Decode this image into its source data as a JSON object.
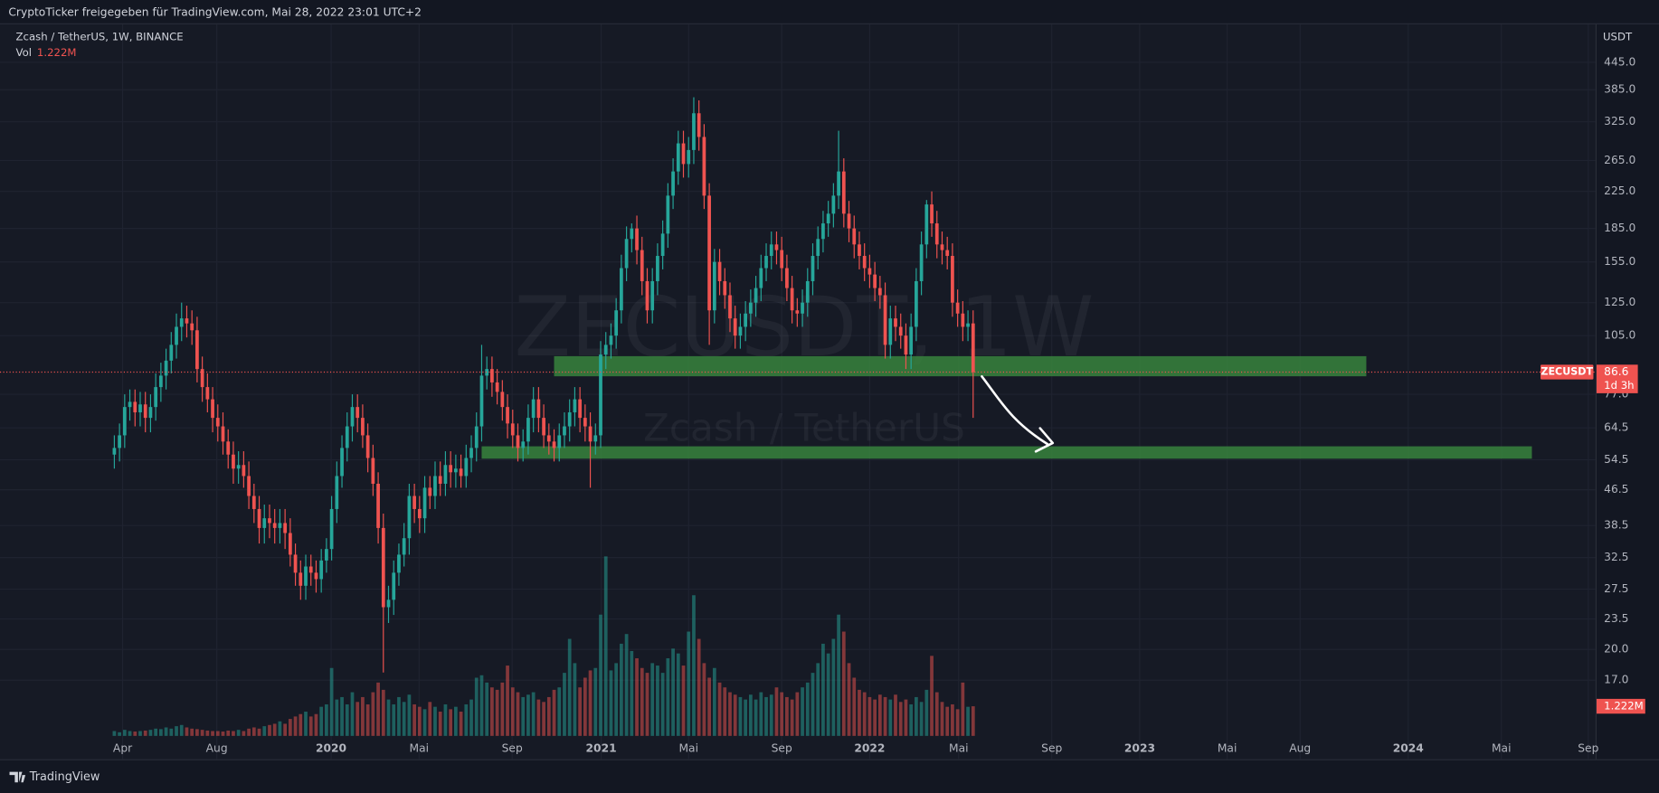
{
  "header": {
    "title": "CryptoTicker freigegeben für TradingView.com, Mai 28, 2022 23:01 UTC+2"
  },
  "footer": {
    "brand": "TradingView"
  },
  "chart_data": {
    "type": "candlestick",
    "title": "Zcash / TetherUS, 1W, BINANCE",
    "watermark": "ZECUSDT, 1W",
    "watermark_subtitle": "Zcash / TetherUS",
    "symbol": "ZECUSDT",
    "countdown": "1d 3h",
    "y_axis_label": "USDT",
    "volume_name": "Vol",
    "volume_label": "1.222M",
    "log_scale": true,
    "grid": true,
    "up_color": "#26a69a",
    "down_color": "#ef5350",
    "open": [
      56,
      58,
      62,
      72,
      74,
      70,
      73,
      68,
      72,
      80,
      85,
      92,
      100,
      110,
      115,
      112,
      108,
      88,
      80,
      75,
      68,
      65,
      60,
      56,
      52,
      53,
      50,
      45,
      42,
      38,
      40,
      39,
      38,
      39,
      37,
      33,
      30,
      28,
      31,
      30,
      29,
      32,
      34,
      42,
      50,
      58,
      65,
      72,
      68,
      62,
      55,
      48,
      38,
      25,
      26,
      30,
      33,
      36,
      45,
      42,
      40,
      47,
      45,
      50,
      48,
      53,
      51,
      52,
      50,
      55,
      58,
      65,
      85,
      88,
      82,
      78,
      72,
      66,
      62,
      58,
      60,
      68,
      75,
      68,
      62,
      60,
      58,
      62,
      65,
      70,
      75,
      68,
      65,
      60,
      62,
      95,
      100,
      105,
      120,
      150,
      175,
      185,
      165,
      140,
      120,
      140,
      160,
      180,
      220,
      250,
      290,
      260,
      280,
      340,
      300,
      220,
      120,
      155,
      140,
      130,
      115,
      105,
      110,
      118,
      125,
      135,
      150,
      160,
      170,
      165,
      150,
      135,
      120,
      118,
      125,
      140,
      160,
      175,
      190,
      200,
      220,
      250,
      200,
      185,
      170,
      160,
      150,
      145,
      135,
      130,
      100,
      115,
      110,
      105,
      95,
      110,
      140,
      170,
      210,
      190,
      170,
      165,
      160,
      125,
      118,
      110,
      112
    ],
    "high": [
      62,
      66,
      77,
      79,
      79,
      78,
      78,
      77,
      86,
      91,
      98,
      107,
      118,
      125,
      123,
      120,
      116,
      94,
      86,
      80,
      73,
      70,
      64,
      60,
      57,
      57,
      54,
      48,
      45,
      43,
      43,
      42,
      42,
      42,
      40,
      35,
      32,
      33,
      33,
      32,
      34,
      36,
      45,
      54,
      62,
      70,
      77,
      77,
      73,
      66,
      59,
      51,
      41,
      28,
      32,
      35,
      39,
      48,
      48,
      45,
      50,
      50,
      54,
      54,
      57,
      57,
      56,
      56,
      59,
      62,
      70,
      100,
      94,
      94,
      88,
      83,
      77,
      71,
      66,
      64,
      73,
      80,
      80,
      73,
      66,
      64,
      66,
      70,
      75,
      80,
      80,
      73,
      70,
      66,
      102,
      107,
      112,
      128,
      161,
      187,
      190,
      198,
      177,
      150,
      150,
      171,
      193,
      235,
      268,
      310,
      310,
      300,
      370,
      364,
      321,
      235,
      166,
      166,
      150,
      139,
      123,
      118,
      126,
      134,
      144,
      161,
      171,
      182,
      182,
      177,
      161,
      144,
      128,
      134,
      150,
      171,
      187,
      203,
      214,
      235,
      310,
      268,
      214,
      198,
      182,
      171,
      161,
      155,
      144,
      139,
      123,
      123,
      118,
      112,
      118,
      150,
      182,
      215,
      225,
      203,
      182,
      177,
      171,
      134,
      126,
      120,
      120
    ],
    "low": [
      52,
      54,
      58,
      67,
      65,
      65,
      63,
      63,
      67,
      74,
      79,
      86,
      93,
      102,
      104,
      100,
      82,
      74,
      70,
      63,
      60,
      56,
      52,
      48,
      48,
      47,
      42,
      39,
      35,
      35,
      36,
      35,
      35,
      34,
      31,
      28,
      26,
      26,
      28,
      27,
      27,
      30,
      32,
      39,
      47,
      54,
      60,
      63,
      58,
      51,
      45,
      35,
      17.7,
      23,
      24,
      28,
      31,
      33,
      39,
      37,
      37,
      42,
      42,
      45,
      45,
      47,
      47,
      47,
      47,
      51,
      54,
      60,
      79,
      76,
      73,
      67,
      61,
      58,
      54,
      54,
      56,
      63,
      63,
      58,
      56,
      54,
      54,
      58,
      60,
      65,
      63,
      60,
      47,
      56,
      58,
      88,
      93,
      98,
      112,
      140,
      163,
      153,
      130,
      112,
      112,
      130,
      149,
      167,
      205,
      233,
      242,
      242,
      260,
      279,
      205,
      100,
      112,
      130,
      121,
      107,
      98,
      98,
      102,
      110,
      116,
      126,
      140,
      149,
      153,
      140,
      126,
      112,
      110,
      110,
      116,
      130,
      149,
      163,
      177,
      186,
      205,
      186,
      172,
      158,
      149,
      140,
      135,
      126,
      121,
      93,
      93,
      102,
      98,
      88,
      88,
      102,
      130,
      158,
      177,
      158,
      153,
      149,
      116,
      110,
      102,
      102,
      68
    ],
    "close": [
      58,
      62,
      72,
      74,
      70,
      73,
      68,
      72,
      80,
      85,
      92,
      100,
      110,
      115,
      112,
      108,
      88,
      80,
      75,
      68,
      65,
      60,
      56,
      52,
      53,
      50,
      45,
      42,
      38,
      40,
      39,
      38,
      39,
      37,
      33,
      30,
      28,
      31,
      30,
      29,
      32,
      34,
      42,
      50,
      58,
      65,
      72,
      68,
      62,
      55,
      48,
      38,
      25,
      26,
      30,
      33,
      36,
      45,
      42,
      40,
      47,
      45,
      50,
      48,
      53,
      51,
      52,
      50,
      55,
      58,
      65,
      85,
      88,
      82,
      78,
      72,
      66,
      62,
      58,
      60,
      68,
      75,
      68,
      62,
      60,
      58,
      62,
      65,
      70,
      75,
      68,
      65,
      60,
      62,
      95,
      100,
      105,
      120,
      150,
      175,
      185,
      165,
      140,
      120,
      140,
      160,
      180,
      220,
      250,
      290,
      260,
      280,
      340,
      300,
      220,
      120,
      155,
      140,
      130,
      115,
      105,
      110,
      118,
      125,
      135,
      150,
      160,
      170,
      165,
      150,
      135,
      120,
      118,
      125,
      140,
      160,
      175,
      190,
      200,
      220,
      250,
      200,
      185,
      170,
      160,
      150,
      145,
      135,
      130,
      100,
      115,
      110,
      105,
      95,
      110,
      140,
      170,
      210,
      190,
      170,
      165,
      160,
      125,
      118,
      110,
      112,
      86.6
    ],
    "volume": [
      0.2,
      0.15,
      0.25,
      0.2,
      0.18,
      0.2,
      0.22,
      0.25,
      0.3,
      0.28,
      0.35,
      0.3,
      0.4,
      0.45,
      0.35,
      0.3,
      0.28,
      0.25,
      0.22,
      0.2,
      0.2,
      0.18,
      0.22,
      0.2,
      0.25,
      0.2,
      0.3,
      0.35,
      0.3,
      0.4,
      0.45,
      0.5,
      0.6,
      0.5,
      0.7,
      0.8,
      0.9,
      1.0,
      0.8,
      0.9,
      1.2,
      1.3,
      2.8,
      1.5,
      1.6,
      1.3,
      1.8,
      1.4,
      1.6,
      1.3,
      1.8,
      2.2,
      1.9,
      1.5,
      1.3,
      1.6,
      1.4,
      1.7,
      1.3,
      1.2,
      1.1,
      1.4,
      1.2,
      1.0,
      1.3,
      1.1,
      1.2,
      1.0,
      1.3,
      1.5,
      2.4,
      2.5,
      2.2,
      2.0,
      1.9,
      2.2,
      2.9,
      2.0,
      1.8,
      1.6,
      1.7,
      1.8,
      1.5,
      1.4,
      1.6,
      1.9,
      2.0,
      2.6,
      4.0,
      3.0,
      2.0,
      2.4,
      2.7,
      2.8,
      5.0,
      7.4,
      2.7,
      3.0,
      3.8,
      4.2,
      3.5,
      3.2,
      2.8,
      2.6,
      3.0,
      2.9,
      2.6,
      3.2,
      3.6,
      3.4,
      2.9,
      4.3,
      5.8,
      4.0,
      3.0,
      2.4,
      2.8,
      2.2,
      2.0,
      1.8,
      1.7,
      1.6,
      1.5,
      1.7,
      1.5,
      1.8,
      1.6,
      1.7,
      2.0,
      1.8,
      1.6,
      1.5,
      1.8,
      2.0,
      2.2,
      2.6,
      3.0,
      3.8,
      3.4,
      4.0,
      5.0,
      4.3,
      3.0,
      2.4,
      1.9,
      1.8,
      1.6,
      1.5,
      1.7,
      1.6,
      1.5,
      1.7,
      1.4,
      1.5,
      1.3,
      1.6,
      1.4,
      1.9,
      3.3,
      1.8,
      1.4,
      1.2,
      1.3,
      1.1,
      2.2,
      1.2,
      1.222
    ],
    "ylim": [
      11.2,
      544
    ],
    "yticks": [
      {
        "value": 445,
        "label": "445.0"
      },
      {
        "value": 385,
        "label": "385.0"
      },
      {
        "value": 325,
        "label": "325.0"
      },
      {
        "value": 265,
        "label": "265.0"
      },
      {
        "value": 225,
        "label": "225.0"
      },
      {
        "value": 185,
        "label": "185.0"
      },
      {
        "value": 155,
        "label": "155.0"
      },
      {
        "value": 125,
        "label": "125.0"
      },
      {
        "value": 105,
        "label": "105.0"
      },
      {
        "value": 77,
        "label": "77.0"
      },
      64.5,
      54.5,
      46.5,
      38.5,
      32.5,
      27.5,
      23.5,
      {
        "value": 20,
        "label": "20.0"
      },
      {
        "value": 17,
        "label": "17.0"
      }
    ],
    "xlim": [
      -22.1,
      286.3
    ],
    "xticks": [
      {
        "value": 1.6,
        "label": "Apr"
      },
      {
        "value": 19.8,
        "label": "Aug"
      },
      {
        "value": 41.9,
        "label": "2020"
      },
      {
        "value": 58.9,
        "label": "Mai"
      },
      {
        "value": 76.9,
        "label": "Sep"
      },
      {
        "value": 94.1,
        "label": "2021"
      },
      {
        "value": 111.0,
        "label": "Mai"
      },
      {
        "value": 129.0,
        "label": "Sep"
      },
      {
        "value": 146.0,
        "label": "2022"
      },
      {
        "value": 163.2,
        "label": "Mai"
      },
      {
        "value": 181.2,
        "label": "Sep"
      },
      {
        "value": 198.2,
        "label": "2023"
      },
      {
        "value": 215.1,
        "label": "Mai"
      },
      {
        "value": 229.2,
        "label": "Aug"
      },
      {
        "value": 250.1,
        "label": "2024"
      },
      {
        "value": 268.1,
        "label": "Mai"
      },
      {
        "value": 284.9,
        "label": "Sep"
      }
    ],
    "vlim": [
      0,
      8.5
    ],
    "zones": [
      {
        "color": "#3a8a3e",
        "ylim": [
          84.7,
          94.2
        ],
        "xlim": [
          85,
          242
        ]
      },
      {
        "color": "#3a8a3e",
        "ylim": [
          54.8,
          58.5
        ],
        "xlim": [
          71,
          274
        ]
      }
    ]
  }
}
